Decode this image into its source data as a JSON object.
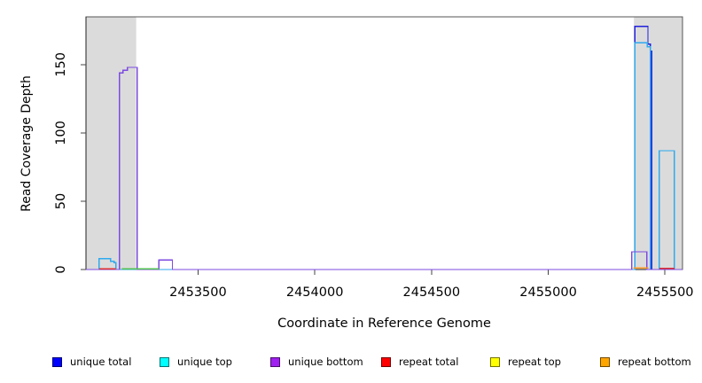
{
  "figure": {
    "xlabel": "Coordinate in Reference Genome",
    "ylabel": "Read Coverage Depth"
  },
  "chart_data": {
    "type": "line",
    "subtype": "step-coverage-plot",
    "title": "",
    "xlabel": "Coordinate in Reference Genome",
    "ylabel": "Read Coverage Depth",
    "xlim": [
      2453020,
      2455575
    ],
    "ylim": [
      0,
      185
    ],
    "x_ticks": [
      2453500,
      2454000,
      2454500,
      2455000,
      2455500
    ],
    "y_ticks": [
      0,
      50,
      100,
      150
    ],
    "grid": false,
    "shaded_regions": [
      {
        "x1": 2453020,
        "x2": 2453235,
        "color": "#DBDBDB"
      },
      {
        "x1": 2455367,
        "x2": 2455575,
        "color": "#DBDBDB"
      }
    ],
    "legend": {
      "position": "bottom",
      "entries": [
        {
          "label": "unique total",
          "swatch_color": "#0000FF"
        },
        {
          "label": "unique top",
          "swatch_color": "#00FFFF"
        },
        {
          "label": "unique bottom",
          "swatch_color": "#A020F0"
        },
        {
          "label": "repeat total",
          "swatch_color": "#FF0000"
        },
        {
          "label": "repeat top",
          "swatch_color": "#FFFF00"
        },
        {
          "label": "repeat bottom",
          "swatch_color": "#FFA500"
        }
      ]
    },
    "series": [
      {
        "name": "unique total",
        "color": "#2020DC",
        "paths": [
          [
            [
              2453020,
              0
            ],
            [
              2455371,
              0
            ],
            [
              2455371,
              178
            ],
            [
              2455427,
              178
            ],
            [
              2455427,
              165
            ],
            [
              2455437,
              165
            ],
            [
              2455437,
              160
            ],
            [
              2455443,
              160
            ],
            [
              2455443,
              0
            ],
            [
              2455575,
              0
            ]
          ]
        ]
      },
      {
        "name": "unique top",
        "color": "#2FAAEE",
        "paths": [
          [
            [
              2453020,
              0
            ],
            [
              2453076,
              0
            ],
            [
              2453076,
              8
            ],
            [
              2453125,
              8
            ],
            [
              2453125,
              6
            ],
            [
              2453140,
              6
            ],
            [
              2453140,
              5
            ],
            [
              2453148,
              5
            ],
            [
              2453148,
              0
            ],
            [
              2455371,
              0
            ],
            [
              2455371,
              166
            ],
            [
              2455424,
              166
            ],
            [
              2455424,
              163
            ],
            [
              2455437,
              163
            ],
            [
              2455437,
              0
            ],
            [
              2455476,
              0
            ],
            [
              2455476,
              87
            ],
            [
              2455540,
              87
            ],
            [
              2455540,
              0
            ],
            [
              2455575,
              0
            ]
          ]
        ]
      },
      {
        "name": "unique bottom",
        "color": "#7C4BE0",
        "paths": [
          [
            [
              2453020,
              0
            ],
            [
              2453163,
              0
            ],
            [
              2453163,
              144
            ],
            [
              2453178,
              144
            ],
            [
              2453178,
              146
            ],
            [
              2453197,
              146
            ],
            [
              2453197,
              148
            ],
            [
              2453239,
              148
            ],
            [
              2453239,
              0
            ],
            [
              2453333,
              0
            ],
            [
              2453333,
              7
            ],
            [
              2453390,
              7
            ],
            [
              2453390,
              0
            ],
            [
              2455357,
              0
            ],
            [
              2455357,
              13
            ],
            [
              2455422,
              13
            ],
            [
              2455422,
              0
            ],
            [
              2455575,
              0
            ]
          ]
        ]
      },
      {
        "name": "baseline green segment",
        "color": "#4FC24F",
        "paths": [
          [
            [
              2453174,
              0.4
            ],
            [
              2453333,
              0.4
            ]
          ]
        ]
      },
      {
        "name": "repeat total",
        "color": "#E03030",
        "paths": [
          [
            [
              2453076,
              0.6
            ],
            [
              2453148,
              0.6
            ]
          ],
          [
            [
              2455476,
              0.8
            ],
            [
              2455540,
              0.8
            ]
          ]
        ]
      },
      {
        "name": "repeat bottom",
        "color": "#FF9A1E",
        "paths": [
          [
            [
              2455364,
              1.2
            ],
            [
              2455428,
              1.2
            ]
          ]
        ]
      }
    ]
  }
}
